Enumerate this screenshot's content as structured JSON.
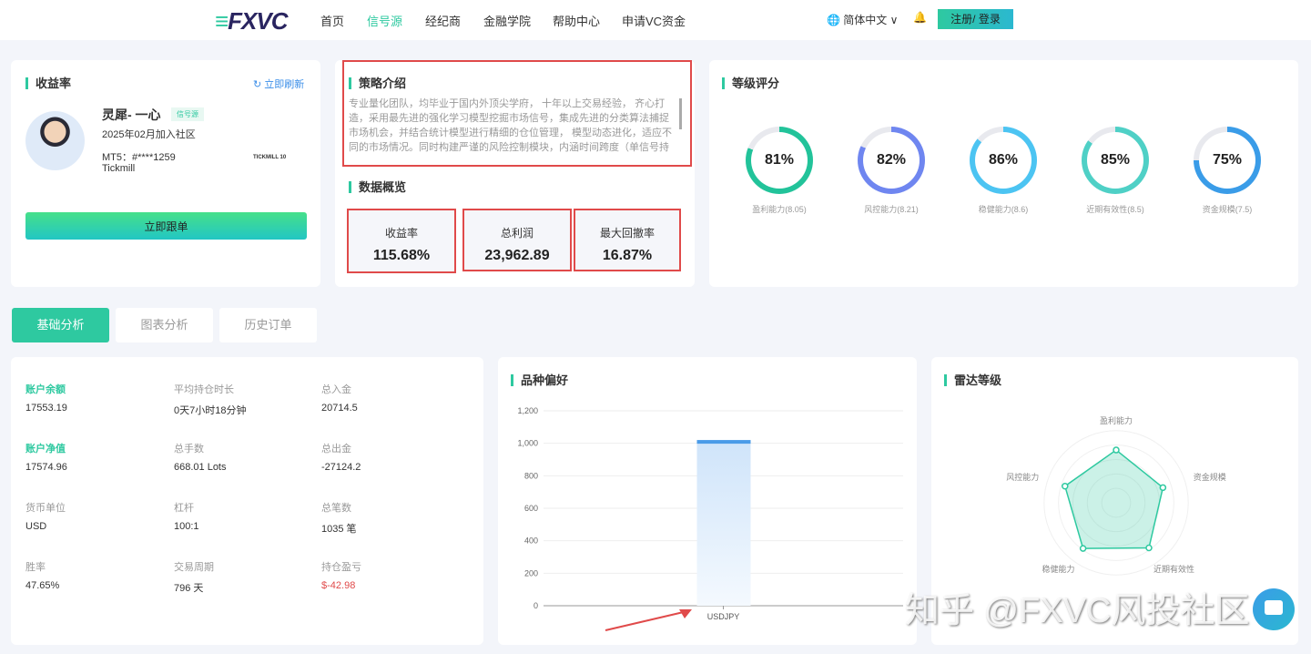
{
  "nav": {
    "logo": "FXVC",
    "items": [
      "首页",
      "信号源",
      "经纪商",
      "金融学院",
      "帮助中心",
      "申请VC资金"
    ],
    "active": 1,
    "language": "简体中文",
    "login": "注册/ 登录"
  },
  "profile": {
    "title": "收益率",
    "refresh": "立即刷新",
    "name": "灵犀- 一心",
    "badge": "信号源",
    "joined": "2025年02月加入社区",
    "account": "MT5：#****1259",
    "broker": "Tickmill",
    "broker_logo": "TICKMILL 10",
    "follow": "立即跟单"
  },
  "strategy": {
    "title": "策略介绍",
    "text": "专业量化团队，均毕业于国内外顶尖学府， 十年以上交易经验， 齐心打造，采用最先进的强化学习模型挖掘市场信号，集成先进的分类算法捕捉市场机会，并结合统计模型进行精细的仓位管理， 模型动态进化，适应不同的市场情况。同时构建严谨的风险控制模块，内涵时间跨度（单信号持仓时间限"
  },
  "overview": {
    "title": "数据概览",
    "stats": [
      {
        "label": "收益率",
        "value": "115.68%"
      },
      {
        "label": "总利润",
        "value": "23,962.89"
      },
      {
        "label": "最大回撤率",
        "value": "16.87%"
      }
    ]
  },
  "rating": {
    "title": "等级评分",
    "items": [
      {
        "pct": "81%",
        "value": 81,
        "label": "盈利能力(8.05)",
        "color": "#22c39a"
      },
      {
        "pct": "82%",
        "value": 82,
        "label": "风控能力(8.21)",
        "color": "#6f86f0"
      },
      {
        "pct": "86%",
        "value": 86,
        "label": "稳健能力(8.6)",
        "color": "#4cc4f2"
      },
      {
        "pct": "85%",
        "value": 85,
        "label": "近期有效性(8.5)",
        "color": "#4fd0c6"
      },
      {
        "pct": "75%",
        "value": 75,
        "label": "资金规模(7.5)",
        "color": "#3a9ce8"
      }
    ]
  },
  "tabs": [
    "基础分析",
    "图表分析",
    "历史订单"
  ],
  "fields": [
    {
      "label": "账户余额",
      "value": "17553.19",
      "highlight": true
    },
    {
      "label": "平均持仓时长",
      "value": "0天7小时18分钟"
    },
    {
      "label": "总入金",
      "value": "20714.5"
    },
    {
      "label": "账户净值",
      "value": "17574.96",
      "highlight": true
    },
    {
      "label": "总手数",
      "value": "668.01 Lots"
    },
    {
      "label": "总出金",
      "value": "-27124.2"
    },
    {
      "label": "货币单位",
      "value": "USD"
    },
    {
      "label": "杠杆",
      "value": "100:1"
    },
    {
      "label": "总笔数",
      "value": "1035 笔"
    },
    {
      "label": "胜率",
      "value": "47.65%"
    },
    {
      "label": "交易周期",
      "value": "796 天"
    },
    {
      "label": "持仓盈亏",
      "value": "$-42.98",
      "negative": true
    }
  ],
  "chart_data": [
    {
      "type": "bar",
      "title": "品种偏好",
      "categories": [
        "USDJPY"
      ],
      "values": [
        1020
      ],
      "ylim": [
        0,
        1200
      ],
      "yticks": [
        "0",
        "200",
        "400",
        "600",
        "800",
        "1,000",
        "1,200"
      ],
      "grid": true,
      "color": "#4a9be8"
    },
    {
      "type": "radar",
      "title": "雷达等级",
      "axes": [
        "盈利能力",
        "资金规模",
        "近期有效性",
        "稳健能力",
        "风控能力"
      ],
      "values": [
        8.05,
        7.5,
        8.5,
        8.6,
        8.21
      ],
      "max": 10,
      "color": "#2ec9a0"
    }
  ],
  "watermark": "知乎 @FXVC风投社区"
}
